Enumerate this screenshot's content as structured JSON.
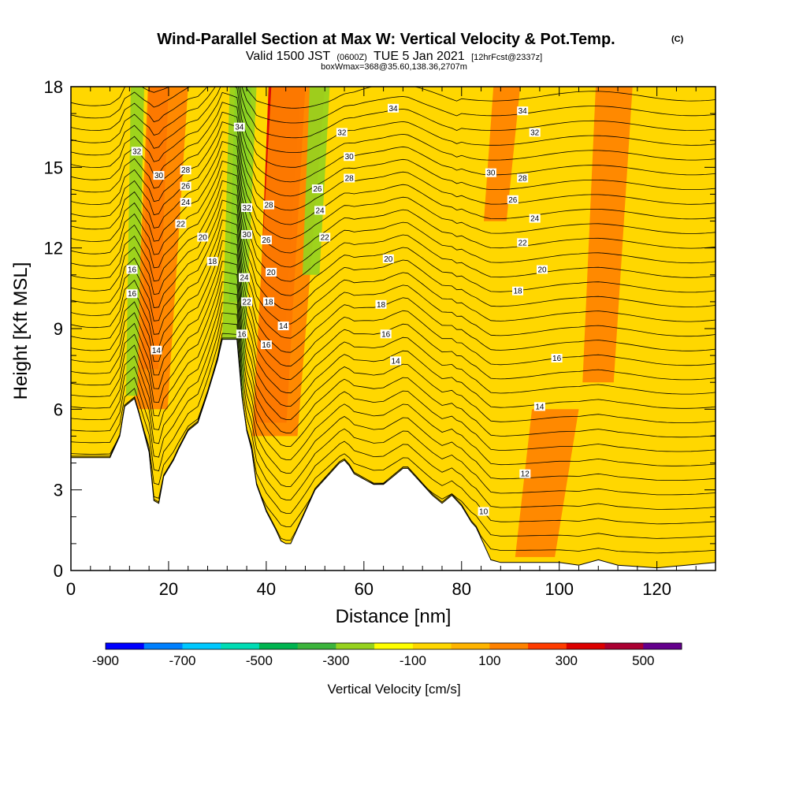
{
  "chart_data": {
    "type": "heatmap",
    "title": "Wind-Parallel Section at Max W: Vertical Velocity & Pot.Temp.",
    "title_tag": "(C)",
    "subtitle": {
      "lead": "Valid 1500 JST",
      "utc": "(0600Z)",
      "date": "TUE 5 Jan 2021",
      "fcst": "[12hrFcst@2337z]"
    },
    "subtitle2": "boxWmax=368@35.60,138.36,2707m",
    "xlabel": "Distance [nm]",
    "ylabel": "Height [Kft MSL]",
    "xlim": [
      0,
      132
    ],
    "ylim": [
      0,
      18
    ],
    "x_ticks": [
      0,
      20,
      40,
      60,
      80,
      100,
      120
    ],
    "y_ticks": [
      0,
      3,
      6,
      9,
      12,
      15,
      18
    ],
    "colorbar": {
      "label": "Vertical Velocity [cm/s]",
      "tick_labels": [
        "-900",
        "-700",
        "-500",
        "-300",
        "-100",
        "100",
        "300",
        "500"
      ],
      "tick_values": [
        -900,
        -700,
        -500,
        -300,
        -100,
        100,
        300,
        500
      ],
      "levels": [
        -900,
        -800,
        -700,
        -600,
        -500,
        -400,
        -300,
        -200,
        -100,
        0,
        100,
        200,
        300,
        400,
        500,
        600
      ],
      "colors": [
        "#0000ff",
        "#0080ff",
        "#00c8ff",
        "#00dcb4",
        "#00b450",
        "#3cb43c",
        "#96d21e",
        "#ffff00",
        "#ffd700",
        "#ffb400",
        "#ff8200",
        "#ff3c00",
        "#dc0000",
        "#aa0032",
        "#64008c"
      ]
    },
    "terrain": {
      "x": [
        0,
        8,
        10,
        11,
        13,
        14,
        16,
        17,
        18,
        19,
        20,
        21,
        22,
        24,
        26,
        28,
        30,
        31,
        34,
        35,
        36,
        37,
        38,
        40,
        42,
        43,
        44,
        45,
        46,
        48,
        50,
        52,
        54,
        55,
        56,
        57,
        58,
        60,
        62,
        64,
        66,
        68,
        69,
        70,
        72,
        74,
        76,
        78,
        80,
        81,
        82,
        83,
        84,
        85,
        86,
        88,
        100,
        104,
        108,
        112,
        120,
        132
      ],
      "height": [
        4.2,
        4.2,
        5.0,
        6.1,
        6.4,
        5.8,
        4.4,
        2.6,
        2.5,
        3.5,
        3.8,
        4.1,
        4.5,
        5.2,
        5.5,
        6.6,
        7.8,
        8.6,
        8.6,
        6.5,
        5.2,
        4.5,
        3.2,
        2.2,
        1.5,
        1.1,
        1.0,
        1.0,
        1.4,
        2.2,
        3.0,
        3.4,
        3.8,
        4.0,
        4.1,
        3.9,
        3.6,
        3.4,
        3.2,
        3.2,
        3.5,
        3.8,
        3.8,
        3.6,
        3.2,
        2.8,
        2.5,
        2.8,
        2.4,
        2.1,
        1.8,
        1.6,
        1.2,
        0.8,
        0.4,
        0.3,
        0.3,
        0.2,
        0.4,
        0.2,
        0.1,
        0.3
      ]
    },
    "vv_features": [
      {
        "class": 300,
        "x": [
          14,
          20
        ],
        "z": [
          7.5,
          18
        ]
      },
      {
        "class": 100,
        "x": [
          12,
          24
        ],
        "z": [
          6,
          18
        ]
      },
      {
        "class": -300,
        "x": [
          11,
          15
        ],
        "z": [
          6.5,
          18
        ]
      },
      {
        "class": 500,
        "x": [
          38,
          47
        ],
        "z": [
          9,
          18
        ]
      },
      {
        "class": 300,
        "x": [
          37,
          48
        ],
        "z": [
          5.5,
          18
        ]
      },
      {
        "class": 100,
        "x": [
          36,
          52
        ],
        "z": [
          5,
          18
        ]
      },
      {
        "class": -500,
        "x": [
          32,
          37
        ],
        "z": [
          10,
          18
        ]
      },
      {
        "class": -300,
        "x": [
          30,
          38
        ],
        "z": [
          6,
          18
        ]
      },
      {
        "class": -300,
        "x": [
          47,
          53
        ],
        "z": [
          11,
          18
        ]
      },
      {
        "class": 100,
        "x": [
          84,
          92
        ],
        "z": [
          13,
          18
        ]
      },
      {
        "class": 100,
        "x": [
          90,
          104
        ],
        "z": [
          0.5,
          6
        ]
      },
      {
        "class": 100,
        "x": [
          104,
          115
        ],
        "z": [
          7,
          18
        ]
      }
    ],
    "isentrope_labels": [
      {
        "text": "32",
        "x": 13.5,
        "y": 15.6
      },
      {
        "text": "30",
        "x": 18.0,
        "y": 14.7
      },
      {
        "text": "28",
        "x": 23.5,
        "y": 14.9
      },
      {
        "text": "26",
        "x": 23.5,
        "y": 14.3
      },
      {
        "text": "24",
        "x": 23.5,
        "y": 13.7
      },
      {
        "text": "22",
        "x": 22.5,
        "y": 12.9
      },
      {
        "text": "20",
        "x": 27.0,
        "y": 12.4
      },
      {
        "text": "18",
        "x": 29.0,
        "y": 11.5
      },
      {
        "text": "16",
        "x": 12.5,
        "y": 11.2
      },
      {
        "text": "16",
        "x": 12.5,
        "y": 10.3
      },
      {
        "text": "14",
        "x": 17.5,
        "y": 8.2
      },
      {
        "text": "34",
        "x": 34.5,
        "y": 16.5
      },
      {
        "text": "32",
        "x": 36.0,
        "y": 13.5
      },
      {
        "text": "30",
        "x": 36.0,
        "y": 12.5
      },
      {
        "text": "24",
        "x": 35.5,
        "y": 10.9
      },
      {
        "text": "22",
        "x": 36.0,
        "y": 10.0
      },
      {
        "text": "16",
        "x": 35.0,
        "y": 8.8
      },
      {
        "text": "28",
        "x": 40.5,
        "y": 13.6
      },
      {
        "text": "26",
        "x": 40.0,
        "y": 12.3
      },
      {
        "text": "20",
        "x": 41.0,
        "y": 11.1
      },
      {
        "text": "18",
        "x": 40.5,
        "y": 10.0
      },
      {
        "text": "16",
        "x": 40.0,
        "y": 8.4
      },
      {
        "text": "14",
        "x": 43.5,
        "y": 9.1
      },
      {
        "text": "26",
        "x": 50.5,
        "y": 14.2
      },
      {
        "text": "24",
        "x": 51.0,
        "y": 13.4
      },
      {
        "text": "22",
        "x": 52.0,
        "y": 12.4
      },
      {
        "text": "32",
        "x": 55.5,
        "y": 16.3
      },
      {
        "text": "30",
        "x": 57.0,
        "y": 15.4
      },
      {
        "text": "28",
        "x": 57.0,
        "y": 14.6
      },
      {
        "text": "34",
        "x": 66.0,
        "y": 17.2
      },
      {
        "text": "20",
        "x": 65.0,
        "y": 11.6
      },
      {
        "text": "18",
        "x": 63.5,
        "y": 9.9
      },
      {
        "text": "16",
        "x": 64.5,
        "y": 8.8
      },
      {
        "text": "14",
        "x": 66.5,
        "y": 7.8
      },
      {
        "text": "34",
        "x": 92.5,
        "y": 17.1
      },
      {
        "text": "32",
        "x": 95.0,
        "y": 16.3
      },
      {
        "text": "30",
        "x": 86.0,
        "y": 14.8
      },
      {
        "text": "28",
        "x": 92.5,
        "y": 14.6
      },
      {
        "text": "26",
        "x": 90.5,
        "y": 13.8
      },
      {
        "text": "24",
        "x": 95.0,
        "y": 13.1
      },
      {
        "text": "22",
        "x": 92.5,
        "y": 12.2
      },
      {
        "text": "20",
        "x": 96.5,
        "y": 11.2
      },
      {
        "text": "18",
        "x": 91.5,
        "y": 10.4
      },
      {
        "text": "16",
        "x": 99.5,
        "y": 7.9
      },
      {
        "text": "14",
        "x": 96.0,
        "y": 6.1
      },
      {
        "text": "12",
        "x": 93.0,
        "y": 3.6
      },
      {
        "text": "10",
        "x": 84.5,
        "y": 2.2
      }
    ]
  }
}
